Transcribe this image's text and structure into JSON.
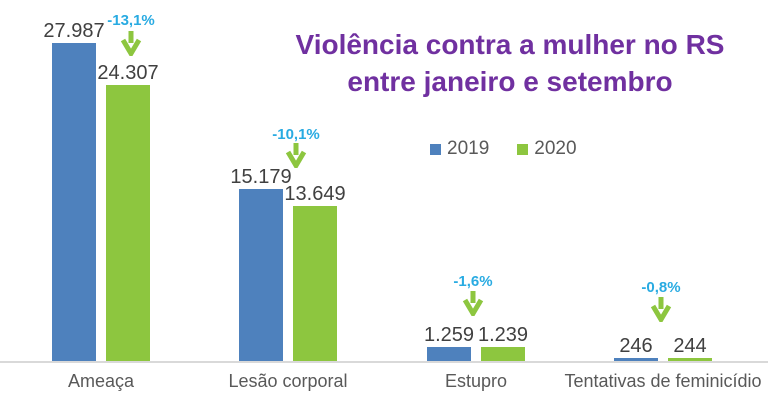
{
  "title": {
    "line1": "Violência contra a mulher no RS",
    "line2": "entre janeiro e setembro"
  },
  "legend": [
    {
      "label": "2019"
    },
    {
      "label": "2020"
    }
  ],
  "colors": {
    "series_2019": "#4e81bd",
    "series_2020": "#8dc63f",
    "percent_text": "#29abe2",
    "arrow": "#8dc63f",
    "title_text": "#7030a0",
    "value_text": "#404040",
    "category_text": "#595959",
    "axis_line": "#d9d9d9"
  },
  "chart_data": {
    "type": "bar",
    "title": "Violência contra a mulher no RS entre janeiro e setembro",
    "categories": [
      "Ameaça",
      "Lesão corporal",
      "Estupro",
      "Tentativas de feminicídio"
    ],
    "series": [
      {
        "name": "2019",
        "values": [
          27987,
          15179,
          1259,
          246
        ],
        "value_labels": [
          "27.987",
          "15.179",
          "1.259",
          "246"
        ]
      },
      {
        "name": "2020",
        "values": [
          24307,
          13649,
          1239,
          244
        ],
        "value_labels": [
          "24.307",
          "13.649",
          "1.239",
          "244"
        ]
      }
    ],
    "annotations": [
      {
        "category": "Ameaça",
        "label": "-13,1%",
        "icon": "down-arrow"
      },
      {
        "category": "Lesão corporal",
        "label": "-10,1%",
        "icon": "down-arrow"
      },
      {
        "category": "Estupro",
        "label": "-1,6%",
        "icon": "down-arrow"
      },
      {
        "category": "Tentativas de feminicídio",
        "label": "-0,8%",
        "icon": "down-arrow"
      }
    ],
    "xlabel": "",
    "ylabel": "",
    "ylim": [
      0,
      28000
    ],
    "grid": false,
    "value_labels_shown": true,
    "legend_position": "center-right"
  }
}
